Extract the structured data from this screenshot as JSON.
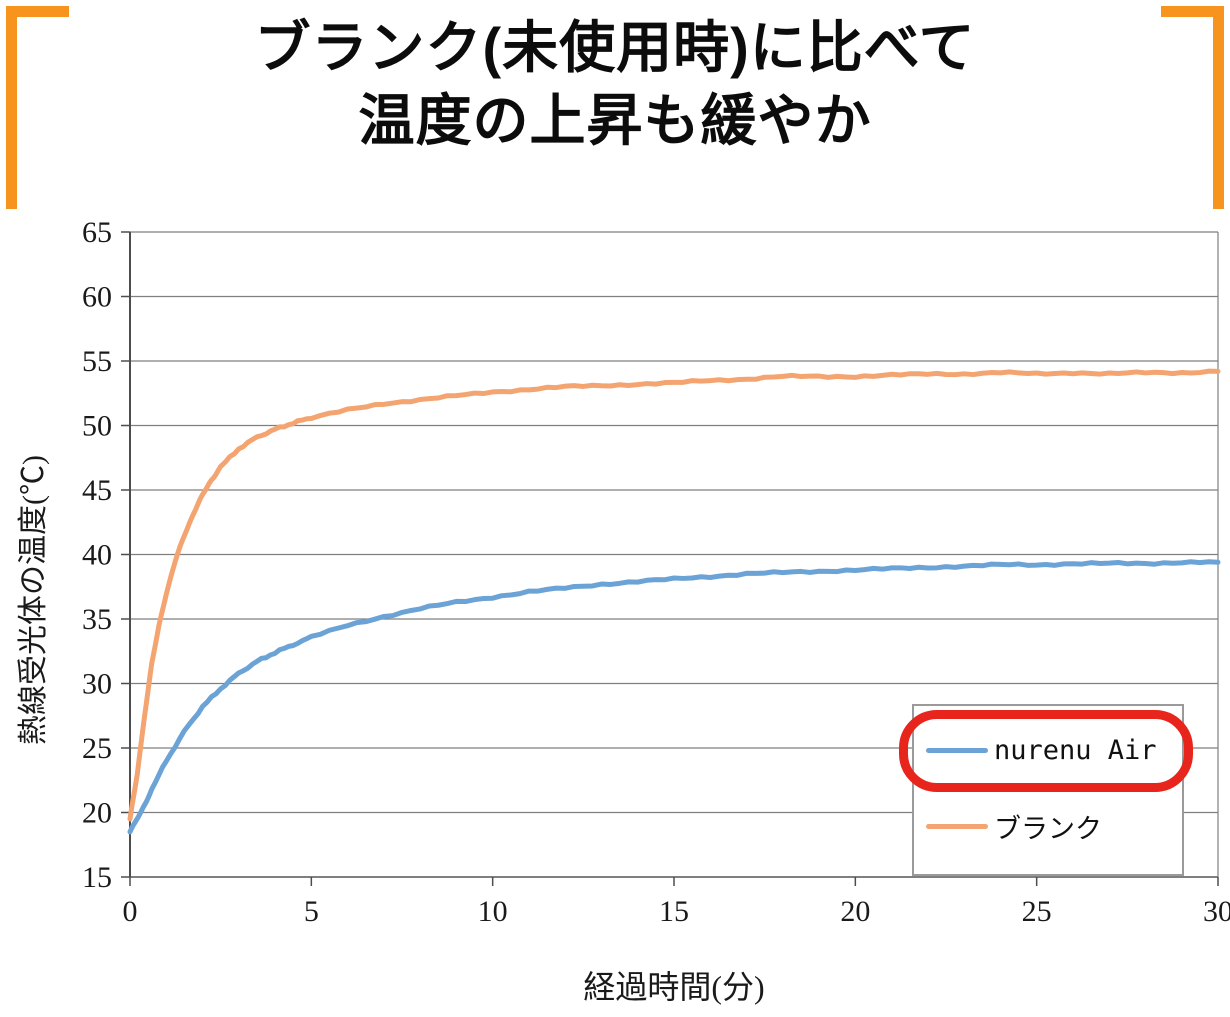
{
  "title": {
    "line1": "ブランク(未使用時)に比べて",
    "line2": "温度の上昇も緩やか"
  },
  "colors": {
    "bracket_orange": "#f7941d",
    "annotation_red": "#e8251c",
    "grid": "#7f7f7f",
    "axis": "#4d4d4d"
  },
  "chart_data": {
    "type": "line",
    "title": "",
    "xlabel": "経過時間(分)",
    "ylabel": "熱線受光体の温度(℃)",
    "xlim": [
      0,
      30
    ],
    "ylim": [
      15,
      65
    ],
    "xticks": [
      0,
      5,
      10,
      15,
      20,
      25,
      30
    ],
    "yticks": [
      15,
      20,
      25,
      30,
      35,
      40,
      45,
      50,
      55,
      60,
      65
    ],
    "grid": "horizontal",
    "legend_position": "inside-bottom-right",
    "annotation": "red rounded box highlighting the nurenu Air legend entry",
    "series": [
      {
        "name": "nurenu Air",
        "color": "#6ba3d6",
        "x": [
          0,
          0.3,
          0.6,
          1,
          1.5,
          2,
          2.5,
          3,
          3.5,
          4,
          4.5,
          5,
          6,
          7,
          8,
          9,
          10,
          11,
          12,
          13,
          14,
          15,
          16,
          17,
          18,
          19,
          20,
          21,
          22,
          23,
          24,
          25,
          26,
          27,
          28,
          29,
          30
        ],
        "y": [
          18.5,
          20.0,
          21.8,
          24.0,
          26.3,
          28.2,
          29.6,
          30.8,
          31.7,
          32.4,
          33.0,
          33.6,
          34.5,
          35.2,
          35.8,
          36.3,
          36.7,
          37.1,
          37.4,
          37.7,
          37.9,
          38.1,
          38.3,
          38.5,
          38.6,
          38.7,
          38.8,
          38.9,
          39.0,
          39.1,
          39.2,
          39.2,
          39.3,
          39.3,
          39.3,
          39.4,
          39.4
        ]
      },
      {
        "name": "ブランク",
        "color": "#f4a470",
        "x": [
          0,
          0.2,
          0.4,
          0.6,
          0.8,
          1,
          1.25,
          1.5,
          1.75,
          2,
          2.25,
          2.5,
          3,
          3.5,
          4,
          4.5,
          5,
          6,
          7,
          8,
          9,
          10,
          11,
          12,
          13,
          14,
          15,
          16,
          17,
          18,
          19,
          20,
          21,
          22,
          23,
          24,
          25,
          26,
          27,
          28,
          29,
          30
        ],
        "y": [
          19.5,
          23.0,
          27.5,
          31.5,
          34.5,
          37.0,
          39.5,
          41.5,
          43.2,
          44.6,
          45.8,
          46.8,
          48.2,
          49.1,
          49.7,
          50.2,
          50.6,
          51.2,
          51.7,
          52.0,
          52.3,
          52.6,
          52.8,
          53.0,
          53.1,
          53.2,
          53.3,
          53.5,
          53.6,
          53.8,
          53.8,
          53.8,
          53.9,
          54.0,
          54.0,
          54.1,
          54.0,
          54.1,
          54.0,
          54.1,
          54.1,
          54.2
        ]
      }
    ]
  }
}
